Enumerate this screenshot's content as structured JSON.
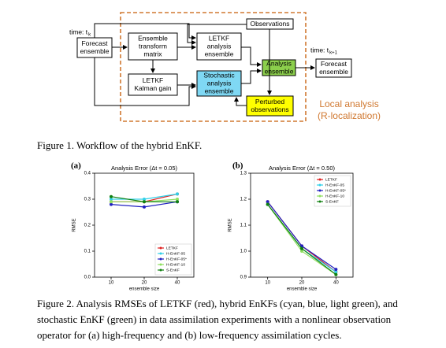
{
  "diagram": {
    "time_start": {
      "label": "time: t",
      "subscript": "k"
    },
    "time_end": {
      "label": "time: t",
      "subscript": "k+1"
    },
    "nodes": [
      {
        "lines": [
          "Forecast",
          "ensemble"
        ]
      },
      {
        "lines": [
          "Ensemble",
          "transform",
          "matrix"
        ]
      },
      {
        "lines": [
          "LETKF",
          "analysis",
          "ensemble"
        ]
      },
      {
        "lines": [
          "Observations"
        ]
      },
      {
        "lines": [
          "LETKF",
          "Kalman gain"
        ]
      },
      {
        "lines": [
          "Stochastic",
          "analysis",
          "ensemble"
        ]
      },
      {
        "lines": [
          "Analysis",
          "ensemble"
        ]
      },
      {
        "lines": [
          "Perturbed",
          "observations"
        ]
      },
      {
        "lines": [
          "Forecast",
          "ensemble"
        ]
      }
    ],
    "region_label": [
      "Local analysis",
      "(R-localization)"
    ]
  },
  "figure1_caption": "Figure 1. Workflow of the hybrid EnKF.",
  "chart_data": [
    {
      "type": "line",
      "panel": "(a)",
      "title": "Analysis Error (Δt = 0.05)",
      "xlabel": "ensemble size",
      "ylabel": "RMSE",
      "categories": [
        "10",
        "20",
        "40"
      ],
      "ylim": [
        0,
        0.4
      ],
      "yticks": [
        {
          "value": 0,
          "label": "0.0"
        },
        0.1,
        0.2,
        0.3,
        0.4
      ],
      "legend": "lower right",
      "series": [
        {
          "name": "LETKF",
          "color": "#e02020",
          "values": [
            0.29,
            0.29,
            0.32
          ]
        },
        {
          "name": "H-EnKF-05",
          "color": "#30d0e8",
          "values": [
            0.3,
            0.3,
            0.32
          ]
        },
        {
          "name": "H-EnKF-05*",
          "color": "#2020c0",
          "values": [
            0.28,
            0.27,
            0.29
          ]
        },
        {
          "name": "H-EnKF-10",
          "color": "#90e060",
          "values": [
            0.29,
            0.29,
            0.3
          ]
        },
        {
          "name": "S-EnKF",
          "color": "#108010",
          "values": [
            0.31,
            0.29,
            0.29
          ]
        }
      ]
    },
    {
      "type": "line",
      "panel": "(b)",
      "title": "Analysis Error (Δt = 0.50)",
      "xlabel": "ensemble size",
      "ylabel": "RMSE",
      "categories": [
        "10",
        "20",
        "40"
      ],
      "ylim": [
        0.9,
        1.3
      ],
      "yticks": [
        0.9,
        {
          "value": 1.0,
          "label": "1.0"
        },
        1.1,
        1.2,
        1.3
      ],
      "legend": "upper right",
      "series": [
        {
          "name": "LETKF",
          "color": "#e02020",
          "values": [
            1.19,
            1.02,
            0.92
          ]
        },
        {
          "name": "H-EnKF-05",
          "color": "#30d0e8",
          "values": [
            1.18,
            1.01,
            0.92
          ]
        },
        {
          "name": "H-EnKF-05*",
          "color": "#2020c0",
          "values": [
            1.19,
            1.02,
            0.93
          ]
        },
        {
          "name": "H-EnKF-10",
          "color": "#90e060",
          "values": [
            1.18,
            1.0,
            0.91
          ]
        },
        {
          "name": "S-EnKF",
          "color": "#108010",
          "values": [
            1.18,
            1.01,
            0.91
          ]
        }
      ]
    }
  ],
  "figure2_caption": "Figure 2. Analysis RMSEs of LETKF (red), hybrid EnKFs (cyan, blue, light green), and stochastic EnKF (green) in data assimilation experiments with a nonlinear observation operator for (a) high-frequency and (b) low-frequency assimilation cycles."
}
